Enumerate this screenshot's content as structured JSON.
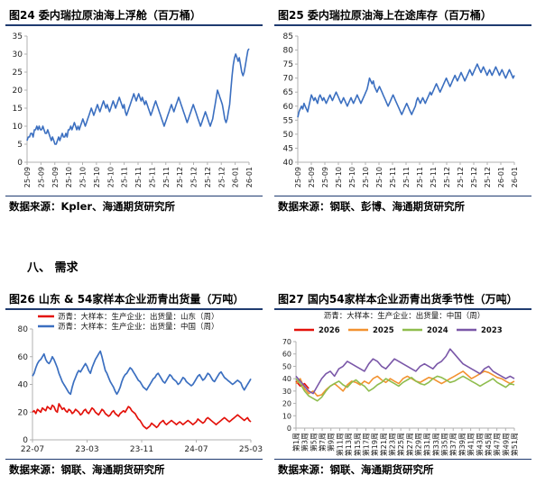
{
  "figures": {
    "fig24": {
      "title": "图24  委内瑞拉原油海上浮舱（百万桶）",
      "source": "数据来源：Kpler、海通期货研究所"
    },
    "fig25": {
      "title": "图25  委内瑞拉原油海上在途库存（百万桶）",
      "source": "数据来源：钢联、彭博、海通期货研究所"
    },
    "fig26": {
      "title": "图26  山东 & 54家样本企业沥青出货量（万吨）",
      "source": "数据来源：钢联、海通期货研究所"
    },
    "fig27": {
      "title": "图27  国内54家样本企业沥青出货季节性（万吨）",
      "source": "数据来源：钢联、海通期货研究所"
    }
  },
  "section_title": "八、  需求",
  "chart_data": [
    {
      "id": "fig24",
      "type": "line",
      "title": "委内瑞拉原油海上浮舱（百万桶）",
      "xlabel": "",
      "ylabel": "",
      "ylim": [
        0,
        35
      ],
      "y_ticks": [
        0,
        5,
        10,
        15,
        20,
        25,
        30,
        35
      ],
      "x_ticks": [
        "25-09",
        "25-09",
        "25-09",
        "25-10",
        "25-10",
        "25-10",
        "25-10",
        "25-11",
        "25-11",
        "25-11",
        "25-11",
        "25-12",
        "25-12",
        "25-12",
        "25-12",
        "26-01",
        "26-01"
      ],
      "grid": false,
      "series": [
        {
          "color": "#3b6fc0",
          "values": [
            6,
            7,
            7,
            8,
            8,
            7,
            9,
            9,
            10,
            9,
            10,
            9,
            9,
            10,
            9,
            8,
            8,
            9,
            8,
            7,
            6,
            7,
            6,
            5,
            5,
            6,
            7,
            6,
            7,
            8,
            7,
            7,
            8,
            7,
            9,
            9,
            10,
            9,
            10,
            11,
            10,
            9,
            10,
            9,
            10,
            11,
            12,
            11,
            10,
            11,
            12,
            13,
            14,
            15,
            14,
            13,
            14,
            15,
            16,
            15,
            14,
            15,
            16,
            17,
            16,
            15,
            16,
            15,
            14,
            15,
            16,
            17,
            16,
            15,
            16,
            17,
            18,
            17,
            16,
            15,
            16,
            14,
            13,
            14,
            15,
            16,
            17,
            18,
            19,
            18,
            17,
            18,
            19,
            18,
            17,
            18,
            17,
            16,
            17,
            16,
            15,
            14,
            13,
            14,
            15,
            16,
            17,
            16,
            15,
            14,
            13,
            12,
            11,
            10,
            11,
            12,
            13,
            14,
            15,
            16,
            15,
            14,
            15,
            16,
            17,
            18,
            17,
            16,
            15,
            14,
            13,
            12,
            11,
            12,
            13,
            14,
            15,
            16,
            15,
            14,
            13,
            12,
            11,
            10,
            11,
            12,
            13,
            14,
            13,
            12,
            11,
            10,
            11,
            12,
            14,
            16,
            18,
            20,
            19,
            18,
            17,
            16,
            14,
            12,
            11,
            12,
            14,
            16,
            20,
            24,
            27,
            29,
            30,
            29,
            28,
            29,
            27,
            25,
            24,
            25,
            27,
            29,
            31,
            31.5
          ]
        }
      ]
    },
    {
      "id": "fig25",
      "type": "line",
      "title": "委内瑞拉原油海上在途库存（百万桶）",
      "xlabel": "",
      "ylabel": "",
      "ylim": [
        40,
        85
      ],
      "y_ticks": [
        40,
        45,
        50,
        55,
        60,
        65,
        70,
        75,
        80,
        85
      ],
      "x_ticks": [
        "25-09",
        "25-09",
        "25-09",
        "25-10",
        "25-10",
        "25-10",
        "25-10",
        "25-11",
        "25-11",
        "25-11",
        "25-11",
        "25-12",
        "25-12",
        "25-12",
        "25-12",
        "26-01",
        "26-01"
      ],
      "grid": false,
      "series": [
        {
          "color": "#3b6fc0",
          "values": [
            56,
            58,
            59,
            60,
            59,
            61,
            60,
            59,
            58,
            60,
            62,
            64,
            63,
            62,
            63,
            62,
            61,
            63,
            64,
            63,
            62,
            63,
            62,
            61,
            62,
            63,
            64,
            63,
            62,
            63,
            64,
            65,
            64,
            63,
            62,
            61,
            62,
            63,
            62,
            61,
            60,
            61,
            62,
            63,
            62,
            61,
            62,
            63,
            64,
            63,
            62,
            61,
            62,
            63,
            64,
            65,
            66,
            68,
            70,
            69,
            68,
            69,
            67,
            66,
            65,
            66,
            67,
            66,
            65,
            64,
            63,
            62,
            61,
            60,
            61,
            62,
            63,
            64,
            63,
            62,
            61,
            60,
            59,
            58,
            57,
            58,
            59,
            60,
            61,
            60,
            59,
            58,
            57,
            58,
            59,
            60,
            62,
            63,
            62,
            61,
            62,
            63,
            62,
            61,
            62,
            63,
            64,
            65,
            64,
            65,
            66,
            67,
            68,
            67,
            66,
            65,
            66,
            67,
            68,
            69,
            70,
            69,
            68,
            67,
            68,
            69,
            70,
            71,
            70,
            69,
            70,
            71,
            72,
            71,
            70,
            69,
            70,
            71,
            72,
            73,
            72,
            71,
            72,
            73,
            74,
            75,
            74,
            73,
            72,
            73,
            74,
            73,
            72,
            71,
            72,
            73,
            72,
            71,
            72,
            73,
            74,
            73,
            72,
            71,
            72,
            73,
            72,
            71,
            70,
            71,
            72,
            73,
            72,
            71,
            70,
            71
          ]
        }
      ]
    },
    {
      "id": "fig26",
      "type": "line",
      "title": "山东 & 54家样本企业沥青出货量（万吨）",
      "xlabel": "",
      "ylabel": "",
      "ylim": [
        0,
        80
      ],
      "y_ticks": [
        0,
        20,
        40,
        60,
        80
      ],
      "x_ticks": [
        "22-07",
        "23-03",
        "23-11",
        "24-07",
        "25-03"
      ],
      "legend": "top-left",
      "grid": false,
      "series": [
        {
          "name": "沥青：大样本：生产企业：出货量：山东（周）",
          "color": "#e3120b",
          "values": [
            20,
            21,
            19,
            22,
            21,
            20,
            23,
            22,
            21,
            24,
            23,
            22,
            25,
            24,
            21,
            20,
            26,
            24,
            22,
            23,
            21,
            20,
            22,
            21,
            19,
            20,
            22,
            21,
            20,
            18,
            19,
            21,
            22,
            20,
            19,
            21,
            23,
            22,
            20,
            19,
            18,
            20,
            22,
            21,
            19,
            18,
            17,
            18,
            20,
            21,
            19,
            18,
            17,
            19,
            20,
            21,
            20,
            22,
            24,
            23,
            21,
            20,
            19,
            17,
            15,
            14,
            12,
            10,
            9,
            8,
            9,
            10,
            12,
            11,
            10,
            9,
            10,
            12,
            13,
            14,
            12,
            11,
            12,
            13,
            14,
            13,
            12,
            11,
            12,
            13,
            12,
            11,
            12,
            13,
            14,
            13,
            12,
            11,
            12,
            13,
            15,
            14,
            13,
            12,
            13,
            15,
            16,
            15,
            14,
            13,
            12,
            11,
            12,
            13,
            14,
            15,
            16,
            15,
            14,
            13,
            14,
            15,
            16,
            17,
            18,
            17,
            16,
            15,
            14,
            15,
            16,
            14,
            13
          ]
        },
        {
          "name": "沥青：大样本：生产企业：出货量：中国（周）",
          "color": "#3b6fc0",
          "values": [
            46,
            48,
            52,
            55,
            57,
            58,
            60,
            62,
            58,
            56,
            55,
            57,
            60,
            58,
            55,
            52,
            48,
            45,
            42,
            40,
            38,
            36,
            34,
            33,
            38,
            42,
            45,
            48,
            50,
            49,
            51,
            53,
            55,
            53,
            50,
            48,
            52,
            55,
            58,
            60,
            62,
            64,
            60,
            55,
            50,
            48,
            45,
            42,
            40,
            38,
            35,
            33,
            35,
            38,
            42,
            45,
            47,
            48,
            50,
            52,
            51,
            49,
            47,
            45,
            43,
            42,
            40,
            38,
            37,
            36,
            38,
            40,
            42,
            44,
            45,
            47,
            48,
            46,
            44,
            42,
            41,
            43,
            45,
            47,
            46,
            44,
            43,
            42,
            40,
            41,
            43,
            45,
            44,
            42,
            41,
            40,
            39,
            40,
            42,
            44,
            46,
            47,
            45,
            43,
            44,
            46,
            48,
            47,
            45,
            43,
            42,
            44,
            46,
            48,
            49,
            47,
            45,
            44,
            43,
            42,
            41,
            40,
            41,
            42,
            43,
            42,
            41,
            38,
            36,
            38,
            40,
            42,
            44
          ]
        }
      ]
    },
    {
      "id": "fig27",
      "type": "line",
      "title": "国内54家样本企业沥青出货季节性（万吨）",
      "xlabel": "",
      "ylabel": "",
      "ylim": [
        0,
        70
      ],
      "y_ticks": [
        0,
        10,
        20,
        30,
        40,
        50,
        60,
        70
      ],
      "subtitle": "沥青：大样本：生产企业：出货量：中国（周）",
      "x_ticks": [
        "第1周",
        "第3周",
        "第5周",
        "第7周",
        "第9周",
        "第11周",
        "第13周",
        "第15周",
        "第17周",
        "第19周",
        "第21周",
        "第23周",
        "第25周",
        "第27周",
        "第29周",
        "第31周",
        "第33周",
        "第35周",
        "第37周",
        "第39周",
        "第41周",
        "第43周",
        "第45周",
        "第47周",
        "第49周",
        "第51周"
      ],
      "legend": "top",
      "grid": false,
      "series": [
        {
          "name": "2026",
          "color": "#e3120b",
          "values": [
            38,
            34,
            36,
            32
          ]
        },
        {
          "name": "2025",
          "color": "#f29230",
          "values": [
            36,
            40,
            32,
            28,
            30,
            26,
            27,
            31,
            34,
            36,
            33,
            30,
            35,
            38,
            37,
            35,
            38,
            36,
            40,
            42,
            39,
            37,
            40,
            38,
            36,
            40,
            42,
            40,
            38,
            37,
            39,
            41,
            40,
            38,
            36,
            38,
            40,
            42,
            44,
            46,
            43,
            40,
            42,
            44,
            46,
            45,
            43,
            41,
            40,
            38,
            36,
            38
          ]
        },
        {
          "name": "2024",
          "color": "#8fbd4e",
          "values": [
            40,
            36,
            30,
            26,
            24,
            22,
            25,
            30,
            34,
            36,
            38,
            35,
            33,
            37,
            39,
            36,
            34,
            30,
            32,
            35,
            37,
            40,
            38,
            36,
            34,
            37,
            39,
            41,
            38,
            36,
            35,
            37,
            40,
            42,
            41,
            39,
            37,
            38,
            40,
            42,
            40,
            38,
            36,
            34,
            36,
            38,
            40,
            37,
            35,
            33,
            36,
            35
          ]
        },
        {
          "name": "2023",
          "color": "#7a57a8",
          "values": [
            42,
            38,
            34,
            30,
            28,
            34,
            40,
            44,
            46,
            42,
            48,
            50,
            54,
            52,
            50,
            48,
            46,
            52,
            56,
            54,
            50,
            48,
            52,
            56,
            54,
            52,
            50,
            48,
            46,
            50,
            52,
            50,
            48,
            52,
            54,
            58,
            64,
            60,
            56,
            52,
            50,
            48,
            46,
            44,
            48,
            50,
            46,
            44,
            42,
            40,
            42,
            40
          ]
        }
      ]
    }
  ]
}
